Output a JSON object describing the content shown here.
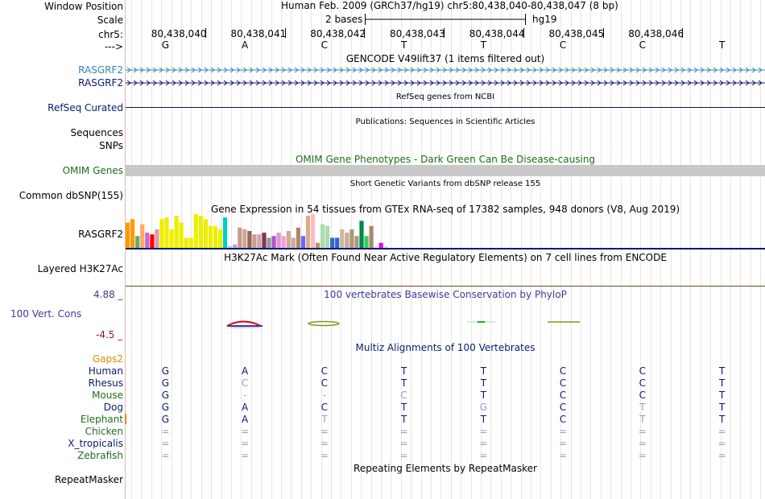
{
  "header": {
    "window_position_label": "Window Position",
    "window_position_text": "Human Feb. 2009 (GRCh37/hg19)   chr5:80,438,040-80,438,047 (8 bp)",
    "scale_label": "Scale",
    "scale_text": "2 bases",
    "assembly": "hg19",
    "chrom_label": "chr5:",
    "arrow_label": "--->",
    "positions": [
      "80,438,040",
      "80,438,041",
      "80,438,042",
      "80,438,043",
      "80,438,044",
      "80,438,045",
      "80,438,046"
    ],
    "bases": [
      "G",
      "A",
      "C",
      "T",
      "T",
      "C",
      "C",
      "T"
    ]
  },
  "tracks": {
    "gencode": {
      "title": "GENCODE V49lift37 (1 items filtered out)",
      "genes": [
        "RASGRF2",
        "RASGRF2"
      ],
      "colors": [
        "#2e8ab5",
        "#0b1a6e"
      ]
    },
    "refseq": {
      "title": "RefSeq genes from NCBI",
      "label": "RefSeq Curated"
    },
    "publications": {
      "title": "Publications: Sequences in Scientific Articles",
      "label1": "Sequences",
      "label2": "SNPs"
    },
    "omim": {
      "title": "OMIM Gene Phenotypes - Dark Green Can Be Disease-causing",
      "label": "OMIM Genes",
      "color": "#1f6d1f"
    },
    "dbsnp": {
      "title": "Short Genetic Variants from dbSNP release 155",
      "label": "Common dbSNP(155)"
    },
    "gtex": {
      "title": "Gene Expression in 54 tissues from GTEx RNA-seq of 17382 samples, 948 donors (V8, Aug 2019)",
      "label": "RASGRF2",
      "bars": [
        {
          "v": 0.75,
          "c": "#ff9900"
        },
        {
          "v": 0.85,
          "c": "#ff9900"
        },
        {
          "v": 0.35,
          "c": "#66aa66"
        },
        {
          "v": 0.7,
          "c": "#ffaa66"
        },
        {
          "v": 0.45,
          "c": "#cc66cc"
        },
        {
          "v": 0.4,
          "c": "#ff0000"
        },
        {
          "v": 0.55,
          "c": "#dda0aa"
        },
        {
          "v": 0.85,
          "c": "#eeee00"
        },
        {
          "v": 0.9,
          "c": "#eeee00"
        },
        {
          "v": 0.55,
          "c": "#eeee00"
        },
        {
          "v": 0.95,
          "c": "#eeee00"
        },
        {
          "v": 0.75,
          "c": "#eeee00"
        },
        {
          "v": 0.3,
          "c": "#eeee00"
        },
        {
          "v": 0.3,
          "c": "#eeee00"
        },
        {
          "v": 1.0,
          "c": "#eeee00"
        },
        {
          "v": 0.95,
          "c": "#eeee00"
        },
        {
          "v": 0.85,
          "c": "#eeee00"
        },
        {
          "v": 0.65,
          "c": "#eeee00"
        },
        {
          "v": 0.65,
          "c": "#eeee00"
        },
        {
          "v": 0.55,
          "c": "#eeee00"
        },
        {
          "v": 0.9,
          "c": "#00cccc"
        },
        {
          "v": 0.05,
          "c": "#bbbbff"
        },
        {
          "v": 0.1,
          "c": "#aaaacc"
        },
        {
          "v": 0.6,
          "c": "#cc9988"
        },
        {
          "v": 0.55,
          "c": "#ccaa99"
        },
        {
          "v": 0.5,
          "c": "#996655"
        },
        {
          "v": 0.4,
          "c": "#cc9999"
        },
        {
          "v": 0.4,
          "c": "#ccaaaa"
        },
        {
          "v": 0.45,
          "c": "#883355"
        },
        {
          "v": 0.3,
          "c": "#999999"
        },
        {
          "v": 0.35,
          "c": "#aa55cc"
        },
        {
          "v": 0.45,
          "c": "#dd99cc"
        },
        {
          "v": 0.35,
          "c": "#ff99dd"
        },
        {
          "v": 0.5,
          "c": "#ccaa99"
        },
        {
          "v": 0.3,
          "c": "#ccaa99"
        },
        {
          "v": 0.6,
          "c": "#aa8866"
        },
        {
          "v": 0.35,
          "c": "#6666ff"
        },
        {
          "v": 0.95,
          "c": "#ddaa88"
        },
        {
          "v": 1.0,
          "c": "#ffbbbb"
        },
        {
          "v": 0.15,
          "c": "#aa9966"
        },
        {
          "v": 0.7,
          "c": "#aaddaa"
        },
        {
          "v": 0.65,
          "c": "#aaddaa"
        },
        {
          "v": 0.3,
          "c": "#3366cc"
        },
        {
          "v": 0.3,
          "c": "#3366cc"
        },
        {
          "v": 0.55,
          "c": "#ccbb99"
        },
        {
          "v": 0.45,
          "c": "#ccaa99"
        },
        {
          "v": 0.55,
          "c": "#aa9977"
        },
        {
          "v": 0.35,
          "c": "#aa9988"
        },
        {
          "v": 0.8,
          "c": "#008844"
        },
        {
          "v": 0.35,
          "c": "#33cc66"
        },
        {
          "v": 0.65,
          "c": "#aa8866"
        },
        {
          "v": 0.05,
          "c": "#ddddff"
        },
        {
          "v": 0.15,
          "c": "#ee00ee"
        },
        {
          "v": 0.05,
          "c": "#dddddd"
        }
      ]
    },
    "h3k27ac": {
      "title": "H3K27Ac Mark (Often Found Near Active Regulatory Elements) on 7 cell lines from ENCODE",
      "label": "Layered H3K27Ac"
    },
    "phylop": {
      "title": "100 vertebrates Basewise Conservation by PhyloP",
      "label": "100 Vert. Cons",
      "max": "4.88 _",
      "min": "-4.5 _"
    },
    "gaps": {
      "label": "Gaps2"
    },
    "multiz": {
      "title": "Multiz Alignments of 100 Vertebrates",
      "species": [
        {
          "name": "Human",
          "color": "#0b1a6e",
          "bases": [
            "G",
            "A",
            "C",
            "T",
            "T",
            "C",
            "C",
            "T"
          ],
          "faint": [
            false,
            false,
            false,
            false,
            false,
            false,
            false,
            false
          ]
        },
        {
          "name": "Rhesus",
          "color": "#0b1a6e",
          "bases": [
            "G",
            "C",
            "C",
            "T",
            "T",
            "C",
            "C",
            "T"
          ],
          "faint": [
            false,
            true,
            false,
            false,
            false,
            false,
            false,
            false
          ]
        },
        {
          "name": "Mouse",
          "color": "#1f6d1f",
          "bases": [
            "G",
            "-",
            "-",
            "C",
            "T",
            "C",
            "C",
            "T"
          ],
          "faint": [
            false,
            true,
            true,
            true,
            false,
            false,
            false,
            false
          ]
        },
        {
          "name": "Dog",
          "color": "#0b1a6e",
          "bases": [
            "G",
            "A",
            "C",
            "T",
            "G",
            "C",
            "T",
            "T"
          ],
          "faint": [
            false,
            false,
            false,
            false,
            true,
            false,
            true,
            false
          ]
        },
        {
          "name": "Elephant",
          "color": "#1f6d1f",
          "bases": [
            "G",
            "A",
            "T",
            "T",
            "T",
            "C",
            "T",
            "T"
          ],
          "faint": [
            false,
            false,
            true,
            false,
            false,
            false,
            true,
            false
          ]
        },
        {
          "name": "Chicken",
          "color": "#1f6d1f",
          "bases": [
            "=",
            "=",
            "=",
            "=",
            "=",
            "=",
            "=",
            "="
          ],
          "faint": [
            true,
            true,
            true,
            true,
            true,
            true,
            true,
            true
          ]
        },
        {
          "name": "X_tropicalis",
          "color": "#0b1a6e",
          "bases": [
            "=",
            "=",
            "=",
            "=",
            "=",
            "=",
            "=",
            "="
          ],
          "faint": [
            true,
            true,
            true,
            true,
            true,
            true,
            true,
            true
          ]
        },
        {
          "name": "Zebrafish",
          "color": "#1f6d1f",
          "bases": [
            "=",
            "=",
            "=",
            "=",
            "=",
            "=",
            "=",
            "="
          ],
          "faint": [
            true,
            true,
            true,
            true,
            true,
            true,
            true,
            true
          ]
        }
      ]
    },
    "repeatmasker": {
      "title": "Repeating Elements by RepeatMasker",
      "label": "RepeatMasker"
    }
  }
}
